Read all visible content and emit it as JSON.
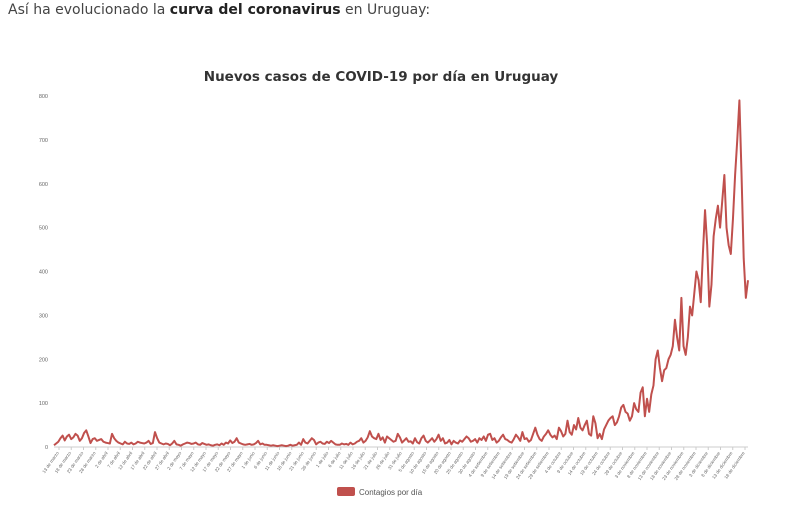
{
  "intro": {
    "prefix": "Así ha evolucionado la ",
    "bold": "curva del coronavirus",
    "suffix": " en Uruguay:"
  },
  "colors": {
    "series": "#c0504d",
    "axis": "#cccccc",
    "text": "#333333",
    "tick_text": "#666666"
  },
  "chart_data": {
    "type": "line",
    "title": "Nuevos casos de COVID-19 por día en Uruguay",
    "xlabel": "",
    "ylabel": "",
    "ylim": [
      0,
      800
    ],
    "yticks": [
      0,
      100,
      200,
      300,
      400,
      500,
      600,
      700,
      800
    ],
    "grid": false,
    "legend_position": "bottom",
    "x_tick_labels": [
      "13 de marzo",
      "18 de marzo",
      "23 de marzo",
      "28 de marzo",
      "2 de abril",
      "7 de abril",
      "12 de abril",
      "17 de abril",
      "22 de abril",
      "27 de abril",
      "2 de mayo",
      "7 de mayo",
      "12 de mayo",
      "17 de mayo",
      "22 de mayo",
      "27 de mayo",
      "1 de junio",
      "6 de junio",
      "11 de junio",
      "16 de junio",
      "21 de junio",
      "26 de junio",
      "1 de julio",
      "6 de julio",
      "11 de julio",
      "16 de julio",
      "21 de julio",
      "26 de julio",
      "31 de julio",
      "5 de agosto",
      "10 de agosto",
      "15 de agosto",
      "20 de agosto",
      "25 de agosto",
      "30 de agosto",
      "4 de setiembre",
      "9 de setiembre",
      "14 de setiembre",
      "19 de setiembre",
      "24 de setiembre",
      "29 de setiembre",
      "4 de octubre",
      "9 de octubre",
      "14 de octubre",
      "19 de octubre",
      "24 de octubre",
      "29 de octubre",
      "3 de noviembre",
      "8 de noviembre",
      "13 de noviembre",
      "18 de noviembre",
      "23 de noviembre",
      "28 de noviembre",
      "3 de diciembre",
      "8 de diciembre",
      "13 de diciembre",
      "18 de diciembre"
    ],
    "series": [
      {
        "name": "Contagios por día",
        "values": [
          4,
          8,
          12,
          20,
          26,
          15,
          24,
          28,
          18,
          22,
          30,
          26,
          14,
          20,
          32,
          38,
          24,
          9,
          18,
          20,
          14,
          16,
          18,
          12,
          10,
          9,
          8,
          30,
          20,
          14,
          10,
          8,
          6,
          12,
          8,
          7,
          10,
          6,
          8,
          12,
          10,
          9,
          8,
          10,
          14,
          7,
          9,
          34,
          20,
          10,
          8,
          6,
          8,
          7,
          4,
          8,
          14,
          6,
          5,
          3,
          6,
          8,
          10,
          9,
          7,
          8,
          10,
          6,
          5,
          9,
          7,
          5,
          6,
          4,
          3,
          5,
          6,
          4,
          8,
          5,
          10,
          8,
          15,
          9,
          12,
          20,
          10,
          8,
          6,
          5,
          6,
          7,
          5,
          6,
          9,
          14,
          6,
          8,
          5,
          5,
          4,
          3,
          4,
          3,
          2,
          3,
          4,
          3,
          2,
          3,
          5,
          3,
          4,
          5,
          10,
          5,
          18,
          10,
          8,
          14,
          20,
          16,
          6,
          10,
          12,
          8,
          7,
          12,
          9,
          14,
          10,
          6,
          5,
          5,
          8,
          6,
          7,
          5,
          10,
          6,
          8,
          12,
          14,
          20,
          10,
          14,
          22,
          36,
          24,
          20,
          18,
          30,
          16,
          22,
          10,
          24,
          20,
          16,
          12,
          14,
          30,
          22,
          10,
          15,
          20,
          12,
          13,
          8,
          20,
          11,
          8,
          20,
          26,
          14,
          10,
          15,
          20,
          12,
          18,
          28,
          14,
          20,
          8,
          10,
          16,
          6,
          14,
          10,
          8,
          15,
          12,
          18,
          24,
          20,
          12,
          14,
          18,
          10,
          20,
          16,
          24,
          14,
          28,
          30,
          16,
          20,
          10,
          14,
          22,
          28,
          18,
          16,
          12,
          10,
          18,
          28,
          22,
          14,
          34,
          18,
          20,
          12,
          16,
          30,
          44,
          28,
          18,
          14,
          24,
          30,
          38,
          28,
          22,
          26,
          18,
          44,
          36,
          24,
          30,
          60,
          34,
          28,
          50,
          40,
          66,
          44,
          38,
          50,
          60,
          30,
          26,
          70,
          54,
          20,
          30,
          18,
          40,
          50,
          60,
          66,
          70,
          50,
          56,
          70,
          90,
          96,
          80,
          76,
          60,
          70,
          100,
          86,
          80,
          124,
          136,
          70,
          110,
          80,
          120,
          140,
          200,
          220,
          180,
          150,
          175,
          180,
          200,
          210,
          230,
          290,
          250,
          220,
          340,
          230,
          210,
          250,
          320,
          300,
          350,
          400,
          380,
          330,
          440,
          540,
          460,
          320,
          370,
          480,
          520,
          550,
          500,
          560,
          620,
          500,
          460,
          440,
          520,
          620,
          700,
          790,
          620,
          430,
          340,
          380
        ]
      }
    ]
  }
}
